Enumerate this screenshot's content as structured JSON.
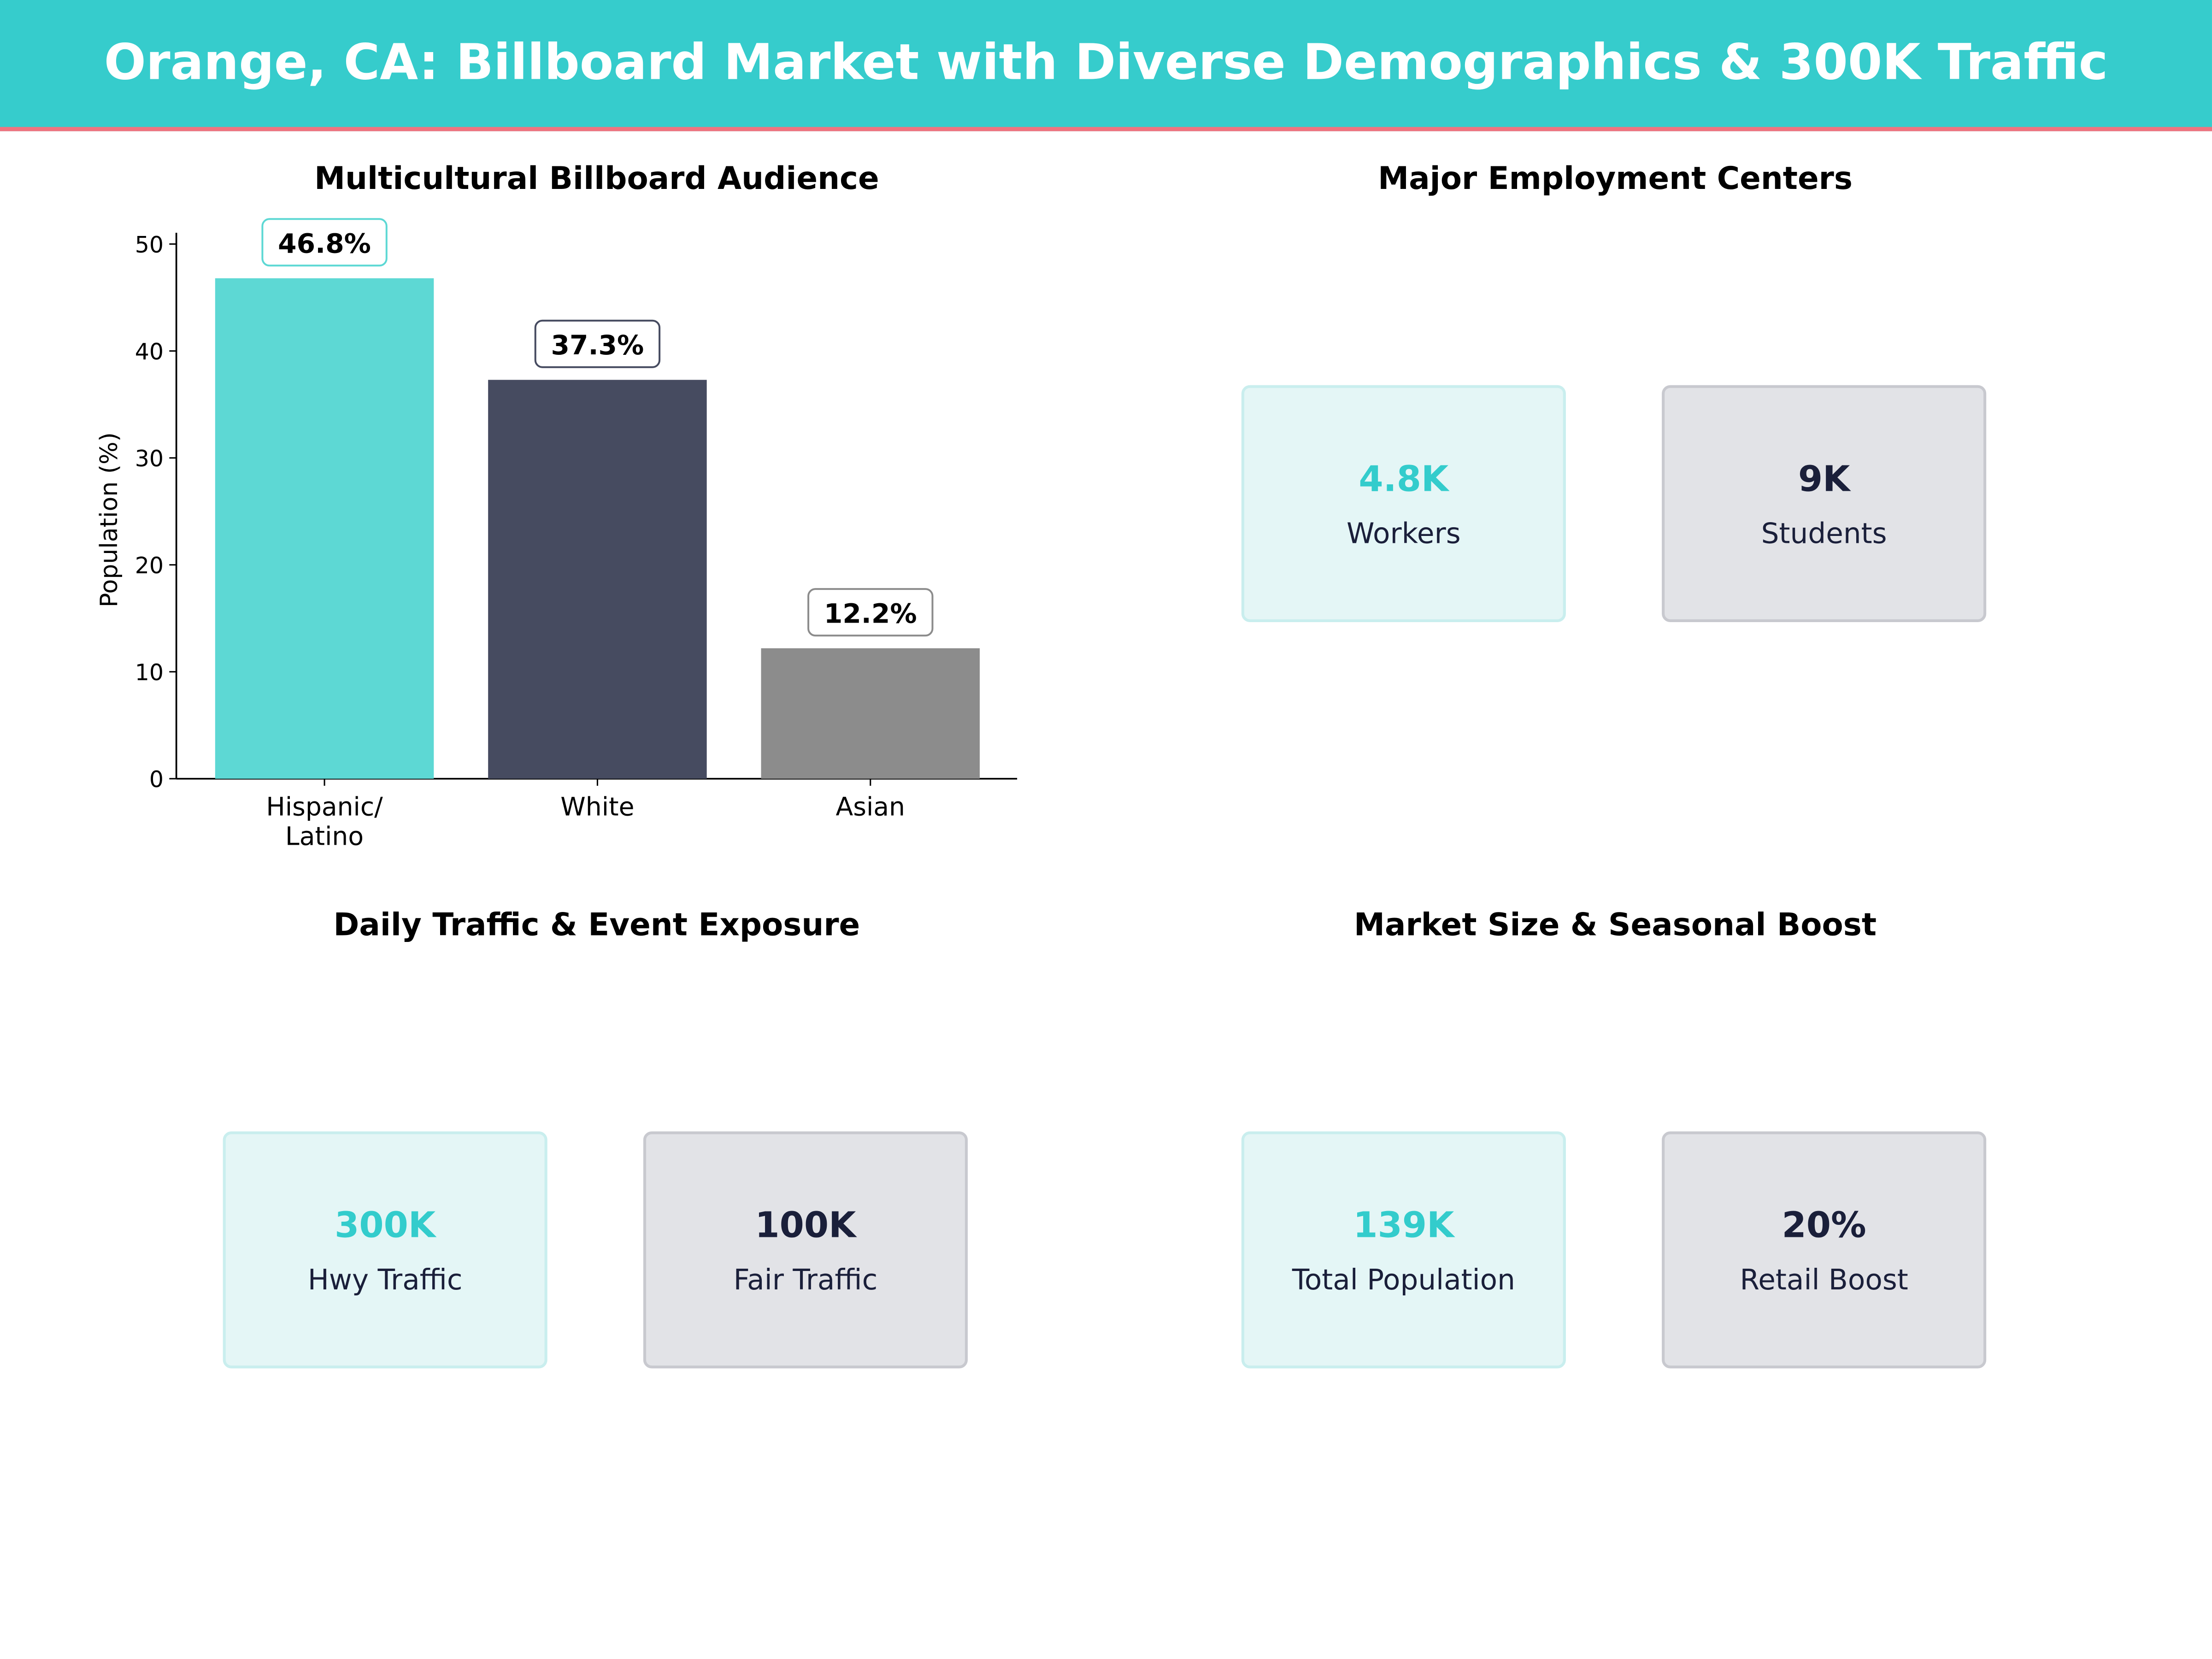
{
  "title": "Orange, CA: Billboard Market with Diverse Demographics & 300K Traffic",
  "colors": {
    "header": "#36cccc",
    "accent_line": "#f0737f",
    "teal": "#33cccc",
    "navy": "#1a1f3a"
  },
  "chart_data": {
    "type": "bar",
    "title": "Multicultural Billboard Audience",
    "xlabel": "",
    "ylabel": "Population (%)",
    "categories": [
      "Hispanic/\nLatino",
      "White",
      "Asian"
    ],
    "values": [
      46.8,
      37.3,
      12.2
    ],
    "data_labels": [
      "46.8%",
      "37.3%",
      "12.2%"
    ],
    "colors": [
      "#5dd8d4",
      "#464b60",
      "#8c8c8c"
    ],
    "label_border_colors": [
      "#5dd8d4",
      "#464b60",
      "#8c8c8c"
    ],
    "yticks": [
      0,
      10,
      20,
      30,
      40,
      50
    ],
    "ylim": [
      0,
      51
    ],
    "grid": false
  },
  "panels": {
    "employment": {
      "title": "Major Employment Centers",
      "cards": [
        {
          "value": "4.8K",
          "label": "Workers"
        },
        {
          "value": "9K",
          "label": "Students"
        }
      ]
    },
    "traffic": {
      "title": "Daily Traffic & Event Exposure",
      "cards": [
        {
          "value": "300K",
          "label": "Hwy Traffic"
        },
        {
          "value": "100K",
          "label": "Fair Traffic"
        }
      ]
    },
    "market": {
      "title": "Market Size & Seasonal Boost",
      "cards": [
        {
          "value": "139K",
          "label": "Total Population"
        },
        {
          "value": "20%",
          "label": "Retail Boost"
        }
      ]
    }
  }
}
